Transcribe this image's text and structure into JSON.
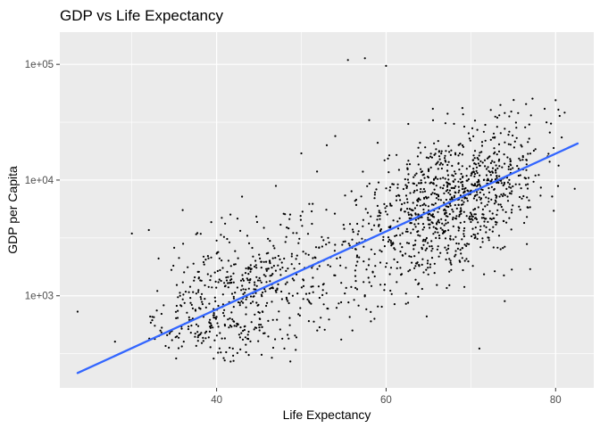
{
  "chart_data": {
    "type": "scatter",
    "title": "GDP vs Life Expectancy",
    "xlabel": "Life Expectancy",
    "ylabel": "GDP per Capita",
    "x_ticks": [
      40,
      60,
      80
    ],
    "y_ticks": [
      1000,
      10000,
      100000
    ],
    "y_tick_labels": [
      "1e+03",
      "1e+04",
      "1e+05"
    ],
    "xlim": [
      21.5,
      84.5
    ],
    "ylim": [
      160,
      190000
    ],
    "y_scale": "log10",
    "grid": true,
    "panel_background": "#ebebeb",
    "point_color": "#000000",
    "trend_color": "#3366ff",
    "trend_line": {
      "x": [
        23.6,
        82.6
      ],
      "y": [
        215,
        20700
      ]
    },
    "highlight_points": [
      {
        "x": 23.6,
        "y": 730
      },
      {
        "x": 30.0,
        "y": 3450
      },
      {
        "x": 32.0,
        "y": 3700
      },
      {
        "x": 33.0,
        "y": 1100
      },
      {
        "x": 35.0,
        "y": 2600
      },
      {
        "x": 36.0,
        "y": 5500
      },
      {
        "x": 40.0,
        "y": 3000
      },
      {
        "x": 41.0,
        "y": 4200
      },
      {
        "x": 43.0,
        "y": 7200
      },
      {
        "x": 47.0,
        "y": 8900
      },
      {
        "x": 48.0,
        "y": 350
      },
      {
        "x": 50.0,
        "y": 17000
      },
      {
        "x": 53.0,
        "y": 20000
      },
      {
        "x": 54.0,
        "y": 24000
      },
      {
        "x": 55.5,
        "y": 109000
      },
      {
        "x": 57.5,
        "y": 113000
      },
      {
        "x": 58.0,
        "y": 33000
      },
      {
        "x": 59.0,
        "y": 21000
      },
      {
        "x": 60.0,
        "y": 97000
      },
      {
        "x": 64.0,
        "y": 21000
      },
      {
        "x": 65.0,
        "y": 15500
      },
      {
        "x": 66.0,
        "y": 14000
      },
      {
        "x": 67.0,
        "y": 31000
      },
      {
        "x": 69.0,
        "y": 42000
      },
      {
        "x": 71.0,
        "y": 350
      },
      {
        "x": 74.0,
        "y": 900
      },
      {
        "x": 77.0,
        "y": 1700
      },
      {
        "x": 80.0,
        "y": 49000
      }
    ]
  }
}
